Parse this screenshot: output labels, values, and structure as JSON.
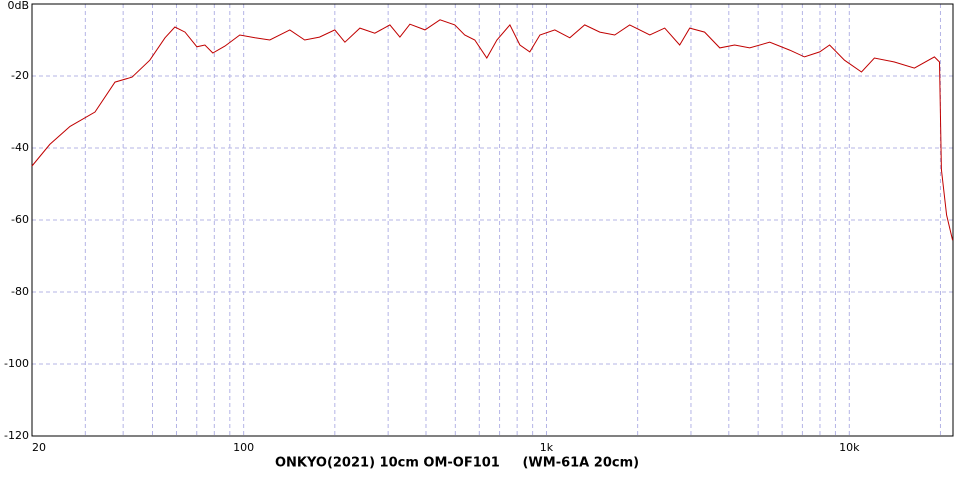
{
  "chart_data": {
    "type": "line",
    "title": "ONKYO(2021) 10cm OM-OF101     (WM-61A 20cm)",
    "x": [
      20,
      22.9,
      26.7,
      32.3,
      37.6,
      42.8,
      49,
      55,
      59.3,
      64,
      70.1,
      74.5,
      79.1,
      86.7,
      97.1,
      109,
      122,
      142,
      159,
      178,
      200,
      216,
      242,
      271,
      304,
      328,
      354,
      397,
      445,
      498,
      537,
      580,
      635,
      686,
      757,
      817,
      881,
      951,
      1065,
      1194,
      1337,
      1500,
      1680,
      1883,
      2193,
      2456,
      2754,
      2972,
      3328,
      3734,
      4179,
      4689,
      5458,
      6357,
      7115,
      7983,
      8610,
      9640,
      10970,
      12106,
      14093,
      16406,
      19099,
      19860,
      20140,
      20950,
      21930
    ],
    "series": [
      {
        "color": "#c00000",
        "values": [
          -45,
          -39,
          -34,
          -30,
          -21.7,
          -20.3,
          -15.6,
          -9.4,
          -6.4,
          -7.8,
          -11.9,
          -11.4,
          -13.6,
          -11.7,
          -8.6,
          -9.4,
          -10,
          -7.2,
          -10,
          -9.2,
          -7.2,
          -10.6,
          -6.7,
          -8.1,
          -5.8,
          -9.2,
          -5.6,
          -7.2,
          -4.4,
          -5.8,
          -8.6,
          -10,
          -15,
          -10,
          -5.8,
          -11.4,
          -13.3,
          -8.6,
          -7.2,
          -9.4,
          -5.8,
          -7.8,
          -8.6,
          -5.8,
          -8.6,
          -6.7,
          -11.4,
          -6.7,
          -7.8,
          -12.2,
          -11.4,
          -12.2,
          -10.6,
          -12.8,
          -14.7,
          -13.3,
          -11.4,
          -15.6,
          -18.9,
          -15,
          -16.1,
          -17.8,
          -14.7,
          -16.1,
          -46,
          -58.6,
          -65.6
        ]
      }
    ],
    "xlim": [
      20,
      22000
    ],
    "log_x": true,
    "xticks": [
      20,
      100,
      {
        "value": 1000,
        "label": "1k"
      },
      {
        "value": 10000,
        "label": "10k"
      }
    ],
    "x_minor_grid": [
      30,
      40,
      50,
      60,
      70,
      80,
      90,
      200,
      300,
      400,
      500,
      600,
      700,
      800,
      900,
      2000,
      3000,
      4000,
      5000,
      6000,
      7000,
      8000,
      9000,
      20000
    ],
    "ylim": [
      -120,
      0
    ],
    "yticks": [
      {
        "value": 0,
        "label": "0dB"
      },
      -20,
      -40,
      -60,
      -80,
      -100,
      -120
    ],
    "grid": true
  }
}
